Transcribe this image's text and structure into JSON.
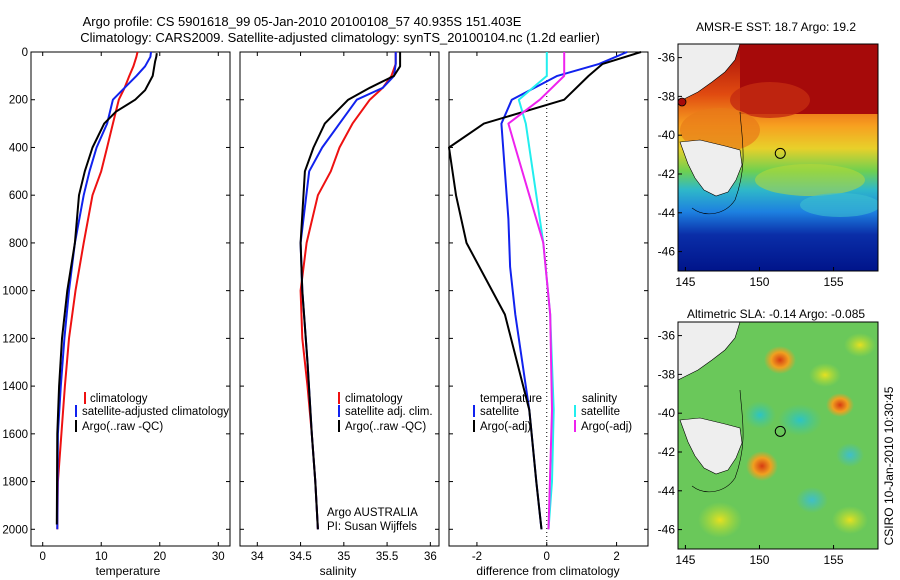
{
  "header": {
    "line1": "Argo profile: CS 5901618_99 05-Jan-2010 20100108_57 40.935S 151.403E",
    "line2": "Climatology: CARS2009. Satellite-adjusted climatology: synTS_20100104.nc (1.2d earlier)"
  },
  "side_label": "CSIRO 10-Jan-2010 10:30:45",
  "colors": {
    "climatology": "#ee1111",
    "satellite": "#1122ee",
    "argo": "#000000",
    "sat_salinity": "#22eeee",
    "argo_salinity": "#ee22ee"
  },
  "chart_data": [
    {
      "type": "line",
      "panel": "temperature",
      "xlabel": "temperature",
      "ylabel": "",
      "xlim": [
        -2,
        32
      ],
      "ylim": [
        2070,
        0
      ],
      "xticks": [
        0,
        10,
        20,
        30
      ],
      "yticks": [
        0,
        200,
        400,
        600,
        800,
        1000,
        1200,
        1400,
        1600,
        1800,
        2000
      ],
      "legend": [
        "climatology",
        "satellite-adjusted climatology",
        "Argo(..raw -QC)"
      ],
      "series": [
        {
          "name": "climatology",
          "color": "#ee1111",
          "x": [
            16.2,
            16,
            15.5,
            14.8,
            14,
            13,
            12,
            11,
            10,
            8.5,
            7,
            5.6,
            4.5,
            3.8,
            3.2,
            2.6,
            2.5
          ],
          "y": [
            0,
            20,
            60,
            100,
            150,
            200,
            300,
            400,
            500,
            600,
            800,
            1000,
            1200,
            1400,
            1600,
            1800,
            2000
          ]
        },
        {
          "name": "satellite-adjusted climatology",
          "color": "#1122ee",
          "x": [
            18.5,
            18.4,
            17.5,
            16,
            14,
            12,
            11,
            9.2,
            8,
            7,
            5.5,
            4.5,
            3.7,
            3.1,
            2.6,
            2.5
          ],
          "y": [
            0,
            20,
            60,
            100,
            150,
            200,
            300,
            400,
            500,
            600,
            800,
            1000,
            1200,
            1400,
            1600,
            2000
          ]
        },
        {
          "name": "Argo(..raw -QC)",
          "color": "#000000",
          "x": [
            19.5,
            19.4,
            19.2,
            18.8,
            17.5,
            15.8,
            12.5,
            10.5,
            8.5,
            7.2,
            6.2,
            5.5,
            4.2,
            3.3,
            2.8,
            2.5,
            2.4
          ],
          "y": [
            5,
            20,
            40,
            100,
            160,
            200,
            250,
            300,
            400,
            500,
            600,
            800,
            1000,
            1200,
            1400,
            1600,
            1980
          ]
        }
      ]
    },
    {
      "type": "line",
      "panel": "salinity",
      "xlabel": "salinity",
      "xlim": [
        33.8,
        36.1
      ],
      "ylim": [
        2070,
        0
      ],
      "xticks": [
        34,
        34.5,
        35,
        35.5,
        36
      ],
      "legend": [
        "climatology",
        "satellite adj. clim.",
        "Argo(..raw -QC)"
      ],
      "annotation": [
        "Argo AUSTRALIA",
        "PI: Susan Wijffels"
      ],
      "series": [
        {
          "name": "climatology",
          "color": "#ee1111",
          "x": [
            35.6,
            35.6,
            35.55,
            35.45,
            35.3,
            35.1,
            34.95,
            34.85,
            34.7,
            34.57,
            34.5,
            34.52,
            34.58,
            34.63,
            34.67,
            34.7
          ],
          "y": [
            0,
            50,
            100,
            150,
            200,
            300,
            400,
            500,
            600,
            800,
            1000,
            1200,
            1400,
            1600,
            1800,
            2000
          ]
        },
        {
          "name": "satellite adj. clim.",
          "color": "#1122ee",
          "x": [
            35.6,
            35.6,
            35.58,
            35.45,
            35.15,
            34.95,
            34.75,
            34.6,
            34.5,
            34.52,
            34.58,
            34.63,
            34.67,
            34.7
          ],
          "y": [
            0,
            50,
            100,
            150,
            200,
            300,
            400,
            500,
            800,
            1000,
            1300,
            1600,
            1800,
            2000
          ]
        },
        {
          "name": "Argo(..raw -QC)",
          "color": "#000000",
          "x": [
            35.65,
            35.65,
            35.58,
            35.3,
            35.05,
            34.78,
            34.65,
            34.55,
            34.5,
            34.52,
            34.58,
            34.63,
            34.67,
            34.7
          ],
          "y": [
            0,
            60,
            100,
            150,
            200,
            300,
            400,
            500,
            800,
            1000,
            1300,
            1600,
            1800,
            2000
          ]
        }
      ]
    },
    {
      "type": "line",
      "panel": "difference",
      "xlabel": "difference from climatology",
      "xlim": [
        -2.8,
        2.9
      ],
      "ylim": [
        2070,
        0
      ],
      "xticks": [
        -2,
        0,
        2
      ],
      "legend_left_title": "temperature",
      "legend_right_title": "salinity",
      "legend": [
        "satellite",
        "Argo(-adj)",
        "satellite",
        "Argo(-adj)"
      ],
      "series": [
        {
          "name": "satellite",
          "group": "temperature",
          "color": "#1122ee",
          "x": [
            2.3,
            1.5,
            0.3,
            -1,
            -1.3,
            -1.2,
            -1.1,
            -1.05,
            -0.9,
            -0.5,
            -0.3,
            -0.15
          ],
          "y": [
            0,
            50,
            100,
            200,
            300,
            500,
            700,
            900,
            1100,
            1500,
            1800,
            2000
          ]
        },
        {
          "name": "Argo(-adj)",
          "group": "temperature",
          "color": "#000000",
          "x": [
            2.7,
            1.6,
            1.2,
            0.5,
            -1.8,
            -2.8,
            -2.6,
            -2.3,
            -1.2,
            -0.5,
            -0.3,
            -0.15
          ],
          "y": [
            0,
            50,
            100,
            200,
            300,
            400,
            600,
            800,
            1100,
            1500,
            1800,
            2000
          ]
        },
        {
          "name": "satellite",
          "group": "salinity",
          "color": "#22eeee",
          "x": [
            0,
            0,
            -0.8,
            -0.6,
            -0.4,
            -0.1,
            0.1,
            0.2,
            0.15,
            0.05
          ],
          "y": [
            0,
            100,
            200,
            300,
            500,
            800,
            1100,
            1500,
            1800,
            2000
          ]
        },
        {
          "name": "Argo(-adj)",
          "group": "salinity",
          "color": "#ee22ee",
          "x": [
            0.5,
            0.5,
            -0.2,
            -1.1,
            -0.9,
            -0.5,
            -0.1,
            0.1,
            0.15,
            0.05
          ],
          "y": [
            0,
            100,
            200,
            300,
            400,
            600,
            800,
            1100,
            1500,
            2000
          ]
        }
      ]
    },
    {
      "type": "heatmap",
      "panel": "sst-map",
      "title": "AMSR-E SST: 18.7 Argo: 19.2",
      "xlim": [
        144.5,
        158
      ],
      "ylim": [
        -47,
        -35.3
      ],
      "xticks": [
        145,
        150,
        155
      ],
      "yticks": [
        -36,
        -38,
        -40,
        -42,
        -44,
        -46
      ]
    },
    {
      "type": "heatmap",
      "panel": "sla-map",
      "title": "Altimetric SLA: -0.14 Argo: -0.085",
      "xlim": [
        144.5,
        158
      ],
      "ylim": [
        -47,
        -35.3
      ],
      "xticks": [
        145,
        150,
        155
      ],
      "yticks": [
        -36,
        -38,
        -40,
        -42,
        -44,
        -46
      ]
    }
  ]
}
